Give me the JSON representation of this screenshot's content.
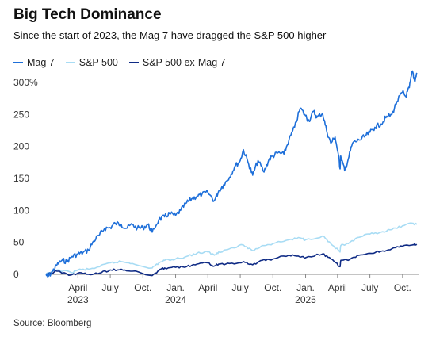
{
  "chart_data": {
    "type": "line",
    "title": "Big Tech Dominance",
    "subtitle": "Since the start of 2023, the Mag 7 have dragged the S&P 500 higher",
    "source": "Source: Bloomberg",
    "legend_position": "top-left",
    "grid": false,
    "ylim": [
      0,
      300
    ],
    "y_ticks": [
      {
        "value": 300,
        "label": "300%"
      },
      {
        "value": 250,
        "label": "250"
      },
      {
        "value": 200,
        "label": "200"
      },
      {
        "value": 150,
        "label": "150"
      },
      {
        "value": 100,
        "label": "100"
      },
      {
        "value": 50,
        "label": "50"
      },
      {
        "value": 0,
        "label": "0"
      }
    ],
    "xlim": [
      "2023-01-01",
      "2025-11-15"
    ],
    "x_ticks": [
      {
        "date": "2023-04-01",
        "label": "April",
        "year": "2023"
      },
      {
        "date": "2023-07-01",
        "label": "July",
        "year": ""
      },
      {
        "date": "2023-10-01",
        "label": "Oct.",
        "year": ""
      },
      {
        "date": "2024-01-01",
        "label": "Jan.",
        "year": "2024"
      },
      {
        "date": "2024-04-01",
        "label": "April",
        "year": ""
      },
      {
        "date": "2024-07-01",
        "label": "July",
        "year": ""
      },
      {
        "date": "2024-10-01",
        "label": "Oct.",
        "year": ""
      },
      {
        "date": "2025-01-01",
        "label": "Jan.",
        "year": "2025"
      },
      {
        "date": "2025-04-01",
        "label": "April",
        "year": ""
      },
      {
        "date": "2025-07-01",
        "label": "July",
        "year": ""
      },
      {
        "date": "2025-10-01",
        "label": "Oct.",
        "year": ""
      }
    ],
    "series": [
      {
        "name": "Mag 7",
        "color": "#1e6fd9",
        "width": 1.6,
        "points": [
          [
            "2023-01-01",
            0
          ],
          [
            "2023-01-06",
            -4
          ],
          [
            "2023-01-20",
            5
          ],
          [
            "2023-02-01",
            15
          ],
          [
            "2023-02-15",
            22
          ],
          [
            "2023-03-01",
            20
          ],
          [
            "2023-03-15",
            28
          ],
          [
            "2023-04-01",
            32
          ],
          [
            "2023-04-15",
            34
          ],
          [
            "2023-05-01",
            38
          ],
          [
            "2023-05-15",
            52
          ],
          [
            "2023-06-01",
            62
          ],
          [
            "2023-06-15",
            72
          ],
          [
            "2023-07-01",
            73
          ],
          [
            "2023-07-15",
            80
          ],
          [
            "2023-08-01",
            78
          ],
          [
            "2023-08-15",
            72
          ],
          [
            "2023-09-01",
            78
          ],
          [
            "2023-09-15",
            72
          ],
          [
            "2023-10-01",
            73
          ],
          [
            "2023-10-15",
            78
          ],
          [
            "2023-10-27",
            66
          ],
          [
            "2023-11-15",
            86
          ],
          [
            "2023-12-01",
            90
          ],
          [
            "2023-12-15",
            95
          ],
          [
            "2024-01-01",
            92
          ],
          [
            "2024-01-15",
            100
          ],
          [
            "2024-02-01",
            112
          ],
          [
            "2024-02-15",
            118
          ],
          [
            "2024-03-01",
            122
          ],
          [
            "2024-03-15",
            125
          ],
          [
            "2024-04-01",
            128
          ],
          [
            "2024-04-19",
            115
          ],
          [
            "2024-05-01",
            130
          ],
          [
            "2024-05-15",
            140
          ],
          [
            "2024-06-01",
            152
          ],
          [
            "2024-06-15",
            168
          ],
          [
            "2024-07-01",
            178
          ],
          [
            "2024-07-10",
            195
          ],
          [
            "2024-07-25",
            172
          ],
          [
            "2024-08-05",
            155
          ],
          [
            "2024-08-20",
            178
          ],
          [
            "2024-09-06",
            160
          ],
          [
            "2024-09-20",
            180
          ],
          [
            "2024-10-01",
            185
          ],
          [
            "2024-10-15",
            190
          ],
          [
            "2024-11-01",
            188
          ],
          [
            "2024-11-15",
            210
          ],
          [
            "2024-12-01",
            230
          ],
          [
            "2024-12-17",
            260
          ],
          [
            "2025-01-01",
            248
          ],
          [
            "2025-01-10",
            240
          ],
          [
            "2025-01-24",
            255
          ],
          [
            "2025-02-01",
            245
          ],
          [
            "2025-02-18",
            252
          ],
          [
            "2025-03-01",
            225
          ],
          [
            "2025-03-13",
            205
          ],
          [
            "2025-03-25",
            215
          ],
          [
            "2025-04-04",
            185
          ],
          [
            "2025-04-08",
            165
          ],
          [
            "2025-04-10",
            185
          ],
          [
            "2025-04-21",
            162
          ],
          [
            "2025-05-01",
            180
          ],
          [
            "2025-05-13",
            205
          ],
          [
            "2025-06-01",
            210
          ],
          [
            "2025-06-15",
            215
          ],
          [
            "2025-07-01",
            222
          ],
          [
            "2025-07-15",
            230
          ],
          [
            "2025-08-01",
            235
          ],
          [
            "2025-08-15",
            245
          ],
          [
            "2025-09-01",
            250
          ],
          [
            "2025-09-15",
            270
          ],
          [
            "2025-10-01",
            285
          ],
          [
            "2025-10-10",
            278
          ],
          [
            "2025-10-20",
            292
          ],
          [
            "2025-10-29",
            318
          ],
          [
            "2025-11-04",
            302
          ],
          [
            "2025-11-10",
            315
          ]
        ]
      },
      {
        "name": "S&P 500",
        "color": "#a8dcf4",
        "width": 1.6,
        "points": [
          [
            "2023-01-01",
            0
          ],
          [
            "2023-02-01",
            7
          ],
          [
            "2023-03-13",
            3
          ],
          [
            "2023-04-01",
            7
          ],
          [
            "2023-05-01",
            8
          ],
          [
            "2023-06-01",
            12
          ],
          [
            "2023-07-01",
            18
          ],
          [
            "2023-08-01",
            20
          ],
          [
            "2023-09-01",
            17
          ],
          [
            "2023-10-27",
            10
          ],
          [
            "2023-11-15",
            18
          ],
          [
            "2023-12-01",
            22
          ],
          [
            "2024-01-01",
            24
          ],
          [
            "2024-02-01",
            28
          ],
          [
            "2024-03-01",
            33
          ],
          [
            "2024-04-01",
            35
          ],
          [
            "2024-04-19",
            30
          ],
          [
            "2024-05-01",
            35
          ],
          [
            "2024-06-01",
            40
          ],
          [
            "2024-07-10",
            46
          ],
          [
            "2024-08-05",
            37
          ],
          [
            "2024-09-01",
            45
          ],
          [
            "2024-10-01",
            48
          ],
          [
            "2024-11-15",
            54
          ],
          [
            "2024-12-17",
            57
          ],
          [
            "2025-01-01",
            54
          ],
          [
            "2025-02-18",
            60
          ],
          [
            "2025-03-13",
            48
          ],
          [
            "2025-04-08",
            35
          ],
          [
            "2025-04-10",
            45
          ],
          [
            "2025-05-01",
            48
          ],
          [
            "2025-06-01",
            58
          ],
          [
            "2025-07-01",
            63
          ],
          [
            "2025-08-01",
            66
          ],
          [
            "2025-09-01",
            70
          ],
          [
            "2025-10-01",
            76
          ],
          [
            "2025-10-29",
            80
          ],
          [
            "2025-11-10",
            78
          ]
        ]
      },
      {
        "name": "S&P 500 ex-Mag 7",
        "color": "#0f2b85",
        "width": 1.6,
        "points": [
          [
            "2023-01-01",
            0
          ],
          [
            "2023-02-01",
            5
          ],
          [
            "2023-03-13",
            -1
          ],
          [
            "2023-04-01",
            2
          ],
          [
            "2023-05-01",
            0
          ],
          [
            "2023-06-01",
            2
          ],
          [
            "2023-07-01",
            7
          ],
          [
            "2023-08-01",
            8
          ],
          [
            "2023-09-01",
            5
          ],
          [
            "2023-10-27",
            -2
          ],
          [
            "2023-11-15",
            6
          ],
          [
            "2023-12-01",
            10
          ],
          [
            "2024-01-01",
            11
          ],
          [
            "2024-02-01",
            12
          ],
          [
            "2024-03-01",
            16
          ],
          [
            "2024-04-01",
            18
          ],
          [
            "2024-04-19",
            13
          ],
          [
            "2024-05-01",
            16
          ],
          [
            "2024-06-01",
            17
          ],
          [
            "2024-07-10",
            20
          ],
          [
            "2024-08-05",
            15
          ],
          [
            "2024-09-01",
            22
          ],
          [
            "2024-10-01",
            24
          ],
          [
            "2024-11-15",
            30
          ],
          [
            "2024-12-17",
            27
          ],
          [
            "2025-01-01",
            26
          ],
          [
            "2025-02-18",
            32
          ],
          [
            "2025-03-13",
            24
          ],
          [
            "2025-04-08",
            12
          ],
          [
            "2025-04-10",
            22
          ],
          [
            "2025-05-01",
            22
          ],
          [
            "2025-06-01",
            30
          ],
          [
            "2025-07-01",
            33
          ],
          [
            "2025-08-01",
            36
          ],
          [
            "2025-09-01",
            40
          ],
          [
            "2025-10-01",
            44
          ],
          [
            "2025-10-29",
            46
          ],
          [
            "2025-11-10",
            47
          ]
        ]
      }
    ]
  }
}
